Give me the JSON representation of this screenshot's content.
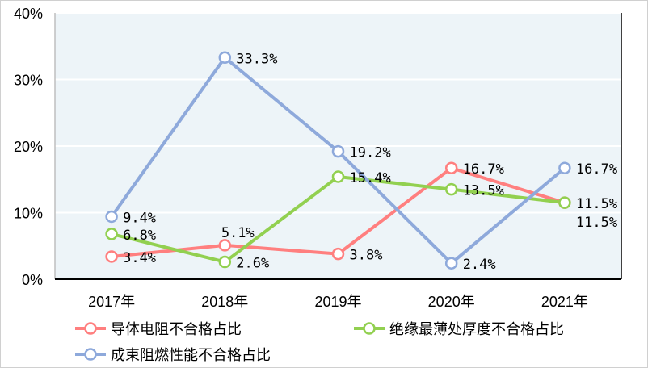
{
  "chart_data": {
    "type": "line",
    "title": "",
    "xlabel": "",
    "ylabel": "",
    "categories": [
      "2017年",
      "2018年",
      "2019年",
      "2020年",
      "2021年"
    ],
    "ylim": [
      0,
      40
    ],
    "yticks": [
      "0%",
      "10%",
      "20%",
      "30%",
      "40%"
    ],
    "grid": true,
    "legend_position": "bottom",
    "plot_background": "#EDF4F8",
    "series": [
      {
        "name": "导体电阻不合格占比",
        "color": "#FF7F7F",
        "values": [
          3.4,
          5.1,
          3.8,
          16.7,
          11.5
        ],
        "labels": [
          "3.4%",
          "5.1%",
          "3.8%",
          "16.7%",
          "11.5%"
        ]
      },
      {
        "name": "绝缘最薄处厚度不合格占比",
        "color": "#92D050",
        "values": [
          6.8,
          2.6,
          15.4,
          13.5,
          11.5
        ],
        "labels": [
          "6.8%",
          "2.6%",
          "15.4%",
          "13.5%",
          "11.5%"
        ]
      },
      {
        "name": "成束阻燃性能不合格占比",
        "color": "#8EA9DB",
        "values": [
          9.4,
          33.3,
          19.2,
          2.4,
          16.7
        ],
        "labels": [
          "9.4%",
          "33.3%",
          "19.2%",
          "2.4%",
          "16.7%"
        ]
      }
    ]
  }
}
